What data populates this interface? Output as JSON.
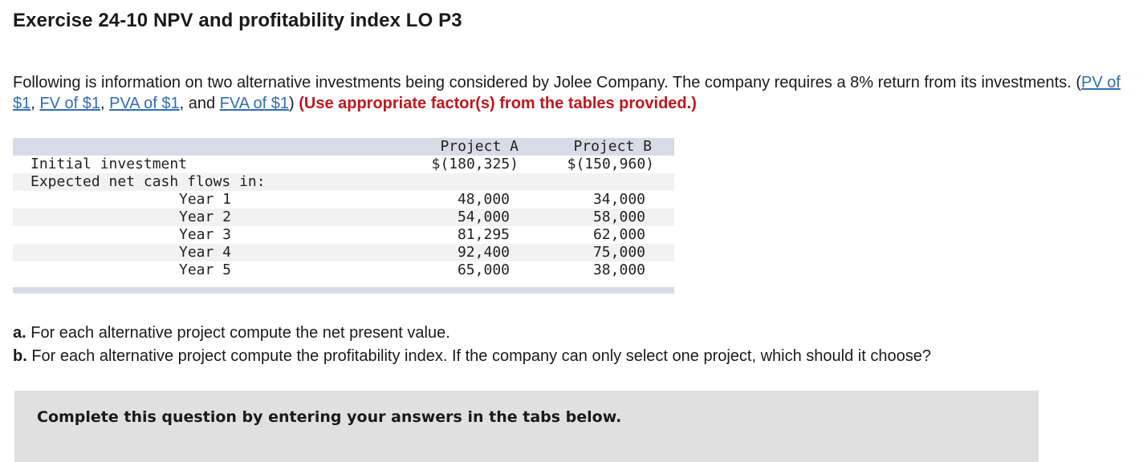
{
  "title": "Exercise 24-10 NPV and profitability index LO P3",
  "intro": {
    "text_before": "Following is information on two alternative investments being considered by Jolee Company. The company requires a 8% return from its investments. (",
    "links": [
      "PV of $1",
      "FV of $1",
      "PVA of $1",
      "FVA of $1"
    ],
    "sep1": ", ",
    "sep2": ", ",
    "sep3": ", and ",
    "text_after": ") ",
    "note": "(Use appropriate factor(s) from the tables provided.)"
  },
  "table": {
    "headers": [
      "Project A",
      "Project B"
    ],
    "initial_label": "Initial investment",
    "initial_values": [
      "$(180,325)",
      "$(150,960)"
    ],
    "cash_flows_label": "Expected net cash flows in:",
    "rows": [
      {
        "label": "Year 1",
        "a": "48,000",
        "b": "34,000"
      },
      {
        "label": "Year 2",
        "a": "54,000",
        "b": "58,000"
      },
      {
        "label": "Year 3",
        "a": "81,295",
        "b": "62,000"
      },
      {
        "label": "Year 4",
        "a": "92,400",
        "b": "75,000"
      },
      {
        "label": "Year 5",
        "a": "65,000",
        "b": "38,000"
      }
    ]
  },
  "questions": {
    "a_prefix": "a.",
    "a_text": " For each alternative project compute the net present value.",
    "b_prefix": "b.",
    "b_text": " For each alternative project compute the profitability index. If the company can only select one project, which should it choose?"
  },
  "panel": {
    "message": "Complete this question by entering your answers in the tabs below."
  }
}
